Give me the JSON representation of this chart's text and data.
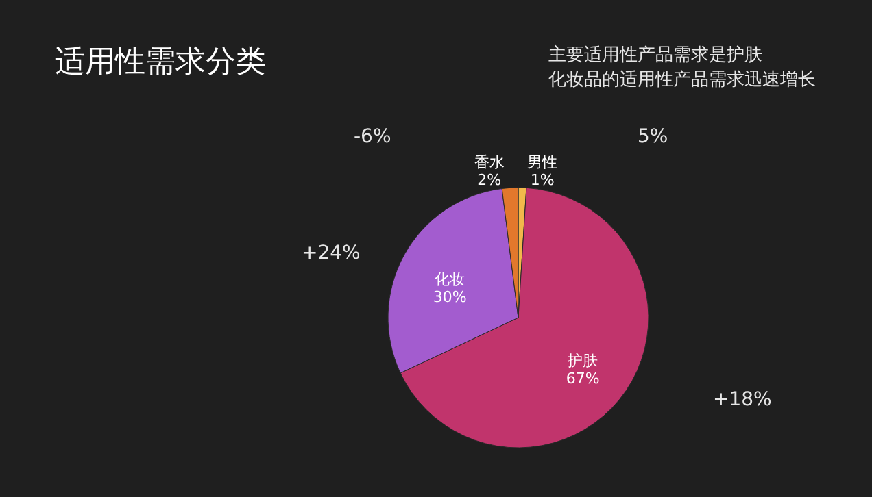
{
  "chart_data": {
    "type": "pie",
    "title": "适用性需求分类",
    "categories": [
      "男性",
      "护肤",
      "化妆",
      "香水"
    ],
    "values": [
      1,
      67,
      30,
      2
    ],
    "value_labels": [
      "1%",
      "67%",
      "30%",
      "2%"
    ],
    "colors": [
      "#f2b84b",
      "#c1346c",
      "#a35ccf",
      "#e2782c"
    ],
    "legend": false,
    "annotations": [
      "主要适用性产品需求是护肤",
      "化妆品的适用性产品需求迅速增长",
      "-6%",
      "5%",
      "+24%",
      "+18%"
    ]
  }
}
